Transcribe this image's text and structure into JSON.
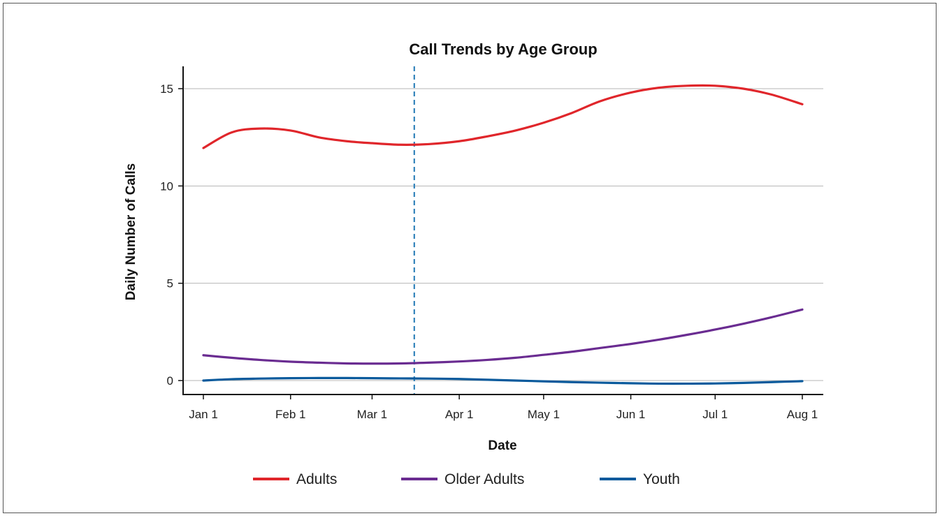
{
  "chart_data": {
    "type": "line",
    "title": "Call Trends by Age Group",
    "xlabel": "Date",
    "ylabel": "Daily Number of Calls",
    "x_ticks": [
      "Jan 1",
      "Feb 1",
      "Mar 1",
      "Apr 1",
      "May 1",
      "Jun 1",
      "Jul 1",
      "Aug 1"
    ],
    "x_tick_dates": [
      "2020-01-01",
      "2020-02-01",
      "2020-03-01",
      "2020-04-01",
      "2020-05-01",
      "2020-06-01",
      "2020-07-01",
      "2020-08-01"
    ],
    "x_range": [
      "2020-01-01",
      "2020-08-01"
    ],
    "ylim": [
      0,
      16
    ],
    "y_ticks": [
      0,
      5,
      10,
      15
    ],
    "grid": "horizontal",
    "legend_position": "bottom",
    "reference_line": {
      "x": "2020-03-16",
      "style": "dashed",
      "color": "#1f77b4"
    },
    "series": [
      {
        "name": "Adults",
        "color": "#e0262b",
        "x": [
          "2020-01-01",
          "2020-01-11",
          "2020-01-21",
          "2020-02-01",
          "2020-02-11",
          "2020-02-21",
          "2020-03-01",
          "2020-03-11",
          "2020-03-21",
          "2020-04-01",
          "2020-04-11",
          "2020-04-21",
          "2020-05-01",
          "2020-05-11",
          "2020-05-21",
          "2020-06-01",
          "2020-06-11",
          "2020-06-21",
          "2020-07-01",
          "2020-07-11",
          "2020-07-21",
          "2020-08-01"
        ],
        "y": [
          11.95,
          12.75,
          12.95,
          12.85,
          12.5,
          12.3,
          12.2,
          12.12,
          12.15,
          12.3,
          12.55,
          12.85,
          13.25,
          13.75,
          14.35,
          14.8,
          15.05,
          15.15,
          15.15,
          15.0,
          14.7,
          14.2
        ]
      },
      {
        "name": "Older Adults",
        "color": "#6a2c91",
        "x": [
          "2020-01-01",
          "2020-01-11",
          "2020-01-21",
          "2020-02-01",
          "2020-02-11",
          "2020-02-21",
          "2020-03-01",
          "2020-03-11",
          "2020-03-21",
          "2020-04-01",
          "2020-04-11",
          "2020-04-21",
          "2020-05-01",
          "2020-05-11",
          "2020-05-21",
          "2020-06-01",
          "2020-06-11",
          "2020-06-21",
          "2020-07-01",
          "2020-07-11",
          "2020-07-21",
          "2020-08-01"
        ],
        "y": [
          1.3,
          1.17,
          1.06,
          0.97,
          0.92,
          0.88,
          0.87,
          0.88,
          0.92,
          0.98,
          1.06,
          1.17,
          1.32,
          1.48,
          1.67,
          1.88,
          2.1,
          2.35,
          2.62,
          2.92,
          3.25,
          3.65
        ]
      },
      {
        "name": "Youth",
        "color": "#0a5a9c",
        "x": [
          "2020-01-01",
          "2020-01-11",
          "2020-01-21",
          "2020-02-01",
          "2020-02-11",
          "2020-02-21",
          "2020-03-01",
          "2020-03-11",
          "2020-03-21",
          "2020-04-01",
          "2020-04-11",
          "2020-04-21",
          "2020-05-01",
          "2020-05-11",
          "2020-05-21",
          "2020-06-01",
          "2020-06-11",
          "2020-06-21",
          "2020-07-01",
          "2020-07-11",
          "2020-07-21",
          "2020-08-01"
        ],
        "y": [
          0.0,
          0.07,
          0.1,
          0.12,
          0.13,
          0.13,
          0.12,
          0.11,
          0.1,
          0.08,
          0.04,
          0.0,
          -0.04,
          -0.08,
          -0.11,
          -0.14,
          -0.16,
          -0.16,
          -0.15,
          -0.12,
          -0.08,
          -0.03
        ]
      }
    ]
  }
}
